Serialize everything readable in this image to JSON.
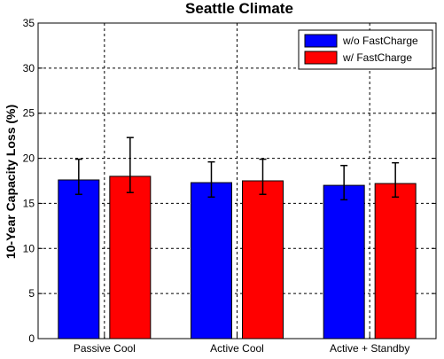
{
  "chart_data": {
    "type": "bar",
    "title": "Seattle Climate",
    "xlabel": "",
    "ylabel": "10-Year Capacity Loss (%)",
    "ylim": [
      0,
      35
    ],
    "yticks": [
      "0",
      "5",
      "10",
      "15",
      "20",
      "25",
      "30",
      "35"
    ],
    "grid": true,
    "legend_position": "top-right",
    "categories": [
      "Passive Cool",
      "Active Cool",
      "Active + Standby"
    ],
    "series": [
      {
        "name": "w/o FastCharge",
        "color": "#0000ff",
        "values": [
          17.6,
          17.3,
          17.0
        ],
        "error_low": [
          16.0,
          15.7,
          15.4
        ],
        "error_high": [
          19.9,
          19.6,
          19.2
        ]
      },
      {
        "name": "w/ FastCharge",
        "color": "#ff0000",
        "values": [
          18.0,
          17.5,
          17.2
        ],
        "error_low": [
          16.2,
          16.0,
          15.7
        ],
        "error_high": [
          22.3,
          19.9,
          19.5
        ]
      }
    ]
  }
}
